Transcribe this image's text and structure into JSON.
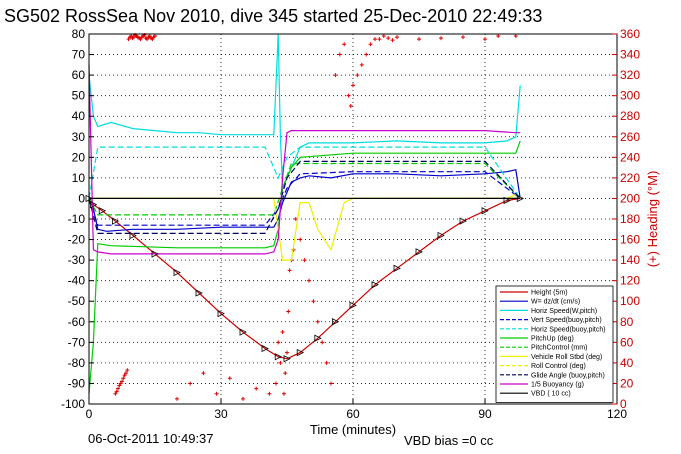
{
  "chart_data": {
    "type": "line",
    "title": "SG502 RossSea Nov 2010, dive 345 started 25-Dec-2010 22:49:33",
    "xlabel": "Time (minutes)",
    "ylabel": "",
    "ylabel_right": "(+) Heading (°M)",
    "xlim": [
      0,
      120
    ],
    "ylim": [
      -100,
      80
    ],
    "ylim_right": [
      0,
      360
    ],
    "x_ticks": [
      "0",
      "30",
      "60",
      "90",
      "120"
    ],
    "y_ticks": [
      "80",
      "70",
      "60",
      "50",
      "40",
      "30",
      "20",
      "10",
      "0",
      "-10",
      "-20",
      "-30",
      "-40",
      "-50",
      "-60",
      "-70",
      "-80",
      "-90",
      "-100"
    ],
    "y_ticks_right": [
      "360",
      "340",
      "320",
      "300",
      "280",
      "260",
      "240",
      "220",
      "200",
      "180",
      "160",
      "140",
      "120",
      "100",
      "80",
      "60",
      "40",
      "20",
      "0"
    ],
    "grid": true,
    "legend_position": "bottom-right",
    "series": [
      {
        "name": "Height (5m)",
        "color": "#cc0000",
        "style": "solid",
        "x": [
          0,
          1,
          3,
          6,
          10,
          15,
          20,
          25,
          30,
          35,
          40,
          43,
          45,
          48,
          52,
          56,
          60,
          65,
          70,
          75,
          80,
          85,
          90,
          95,
          98
        ],
        "y": [
          0,
          -3,
          -6,
          -11,
          -18,
          -27,
          -36,
          -46,
          -56,
          -65,
          -73,
          -77,
          -78,
          -75,
          -68,
          -60,
          -52,
          -42,
          -34,
          -26,
          -18,
          -11,
          -6,
          -1,
          0
        ]
      },
      {
        "name": "W= dz/dt (cm/s)",
        "color": "#0000cc",
        "style": "solid",
        "x": [
          0,
          1,
          2,
          4,
          10,
          20,
          30,
          40,
          42,
          43,
          44,
          46,
          48,
          50,
          55,
          60,
          70,
          80,
          90,
          95,
          97,
          98
        ],
        "y": [
          0,
          -5,
          -15,
          -16,
          -15,
          -15,
          -14,
          -14,
          -14,
          -10,
          -2,
          8,
          10,
          11,
          10,
          12,
          12,
          11,
          12,
          13,
          14,
          0
        ]
      },
      {
        "name": "Horiz Speed(W,pitch)",
        "color": "#00dddd",
        "style": "solid",
        "x": [
          0,
          1,
          2,
          5,
          10,
          15,
          20,
          25,
          30,
          35,
          40,
          42,
          43,
          43.5,
          44,
          46,
          48,
          50,
          60,
          70,
          80,
          90,
          95,
          97,
          98
        ],
        "y": [
          60,
          40,
          35,
          37,
          34,
          33,
          32,
          32,
          31,
          31,
          31,
          31,
          80,
          30,
          5,
          15,
          25,
          27,
          27,
          28,
          27,
          27,
          28,
          30,
          55
        ]
      },
      {
        "name": "Vert Speed(buoy,pitch)",
        "color": "#0000cc",
        "style": "dashed",
        "x": [
          0,
          2,
          5,
          40,
          43,
          45,
          48,
          60,
          90,
          98
        ],
        "y": [
          0,
          -13,
          -13,
          -13,
          -5,
          5,
          12,
          13,
          13,
          0
        ]
      },
      {
        "name": "Horiz Speed(buoy,pitch)",
        "color": "#00dddd",
        "style": "dashed",
        "x": [
          0,
          2,
          5,
          40,
          43,
          45,
          48,
          60,
          90,
          98
        ],
        "y": [
          0,
          25,
          25,
          25,
          10,
          20,
          25,
          25,
          25,
          0
        ]
      },
      {
        "name": "PitchUp (deg)",
        "color": "#00cc00",
        "style": "solid",
        "x": [
          0,
          1,
          2,
          5,
          20,
          40,
          42,
          43,
          44,
          46,
          48,
          60,
          90,
          97,
          98
        ],
        "y": [
          -95,
          -70,
          -22,
          -23,
          -24,
          -24,
          -23,
          -15,
          5,
          15,
          20,
          22,
          22,
          22,
          28
        ]
      },
      {
        "name": "PitchControl (mm)",
        "color": "#00cc00",
        "style": "dashed",
        "x": [
          0,
          2,
          5,
          40,
          42,
          44,
          46,
          48,
          60,
          90,
          98
        ],
        "y": [
          0,
          -8,
          -8,
          -8,
          -8,
          5,
          17,
          17,
          17,
          17,
          0
        ]
      },
      {
        "name": "Vehicle Roll Stbd (deg)",
        "color": "#eeee00",
        "style": "solid",
        "x": [
          0,
          5,
          10,
          15,
          20,
          25,
          30,
          35,
          40,
          42,
          44,
          46,
          48,
          50,
          52,
          55,
          58,
          60,
          70,
          80,
          90,
          95,
          97,
          98
        ],
        "y": [
          0,
          0,
          0,
          0,
          0,
          0,
          0,
          0,
          0,
          0,
          -30,
          -30,
          -2,
          -2,
          -15,
          -25,
          -2,
          0,
          0,
          0,
          0,
          0,
          2,
          0
        ]
      },
      {
        "name": "Roll Control (deg)",
        "color": "#eeee00",
        "style": "dashed",
        "x": [
          0,
          98
        ],
        "y": [
          0,
          0
        ]
      },
      {
        "name": "Glide Angle (buoy,pitch)",
        "color": "#000066",
        "style": "dashed",
        "x": [
          0,
          2,
          5,
          40,
          43,
          45,
          48,
          60,
          90,
          98
        ],
        "y": [
          0,
          -17,
          -17,
          -17,
          -5,
          10,
          18,
          18,
          18,
          0
        ]
      },
      {
        "name": "1/5 Buoyancy (g)",
        "color": "#cc00cc",
        "style": "solid",
        "x": [
          0,
          1,
          2,
          5,
          40,
          42,
          43,
          44,
          45,
          46,
          60,
          90,
          97,
          98
        ],
        "y": [
          65,
          -25,
          -26,
          -27,
          -27,
          -26,
          -20,
          10,
          32,
          33,
          33,
          33,
          32,
          32
        ]
      },
      {
        "name": "VBD ( 10 cc)",
        "color": "#000000",
        "style": "solid",
        "x": [
          0,
          98
        ],
        "y": [
          0,
          0
        ]
      }
    ],
    "heading": {
      "name": "Heading",
      "color": "#dd0000",
      "axis": "right",
      "x": [
        6,
        6.3,
        6.6,
        6.9,
        7.2,
        7.5,
        7.8,
        8.1,
        8.4,
        8.7,
        9,
        9.3,
        9.6,
        9.9,
        10.2,
        10.5,
        10.8,
        11.1,
        11.4,
        11.7,
        12,
        12.3,
        12.6,
        12.9,
        13.2,
        13.5,
        13.8,
        14.1,
        14.4,
        14.7,
        15,
        20,
        23,
        26,
        29,
        32,
        35,
        38,
        41,
        42.5,
        43,
        43.5,
        44,
        44.3,
        44.6,
        45,
        45.3,
        45.6,
        46,
        46.5,
        47,
        48,
        49,
        50,
        51,
        52,
        53,
        54,
        55,
        56,
        57,
        58,
        59,
        59.5,
        60,
        61,
        62,
        63,
        64,
        65,
        66,
        67,
        68,
        69,
        70,
        75,
        80,
        85,
        90,
        93,
        95,
        96,
        97
      ],
      "y": [
        10,
        12,
        15,
        18,
        20,
        22,
        25,
        28,
        30,
        33,
        355,
        357,
        358,
        356,
        357,
        359,
        358,
        357,
        356,
        355,
        357,
        358,
        359,
        356,
        355,
        357,
        358,
        356,
        355,
        357,
        358,
        5,
        20,
        30,
        10,
        25,
        5,
        15,
        10,
        20,
        60,
        40,
        70,
        10,
        30,
        50,
        90,
        130,
        140,
        150,
        180,
        160,
        140,
        120,
        100,
        80,
        60,
        40,
        20,
        320,
        340,
        350,
        300,
        290,
        310,
        320,
        330,
        340,
        350,
        355,
        355,
        358,
        356,
        354,
        357,
        355,
        356,
        357,
        355,
        358,
        5,
        15,
        358
      ]
    }
  },
  "footer": {
    "timestamp": "06-Oct-2011 10:49:37",
    "vbd_bias": "VBD bias =0 cc"
  }
}
